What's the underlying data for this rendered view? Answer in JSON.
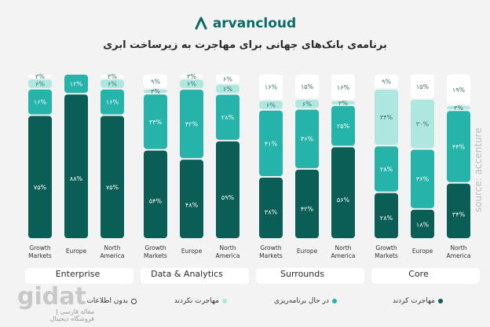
{
  "brand": {
    "name": "arvancloud",
    "color": "#0d6b67"
  },
  "title": "برنامه‌ی بانک‌های جهانی برای مهاجرت به زیرساخت ابری",
  "source": "source: accenture",
  "watermark": {
    "main": "gidat",
    "sub": "مقاله فارسی | فروشگاه دیجیتال"
  },
  "colors": {
    "migrated": "#0a5e55",
    "planning": "#26b3a9",
    "not_migrating": "#aee6e0",
    "unknown": "#ffffff"
  },
  "legend": [
    {
      "label": "مهاجرت کردند",
      "color": "#0a5e55",
      "icon": "dot"
    },
    {
      "label": "در حال برنامه‌ریزی",
      "color": "#26b3a9",
      "icon": "dot"
    },
    {
      "label": "مهاجرت نکردند",
      "color": "#aee6e0",
      "icon": "dot"
    },
    {
      "label": "بدون اطلاعات",
      "color": "#ffffff",
      "icon": "dot"
    }
  ],
  "chart_data": {
    "type": "bar",
    "stacked": true,
    "unit": "%",
    "groups": [
      {
        "name": "Enterprise",
        "categories": [
          "Growth Markets",
          "Europe",
          "North America"
        ],
        "labels": [
          [
            "۷۵%",
            "۱۶%",
            "۶%",
            "۳%"
          ],
          [
            "۸۸%",
            "۱۲%",
            "",
            ""
          ],
          [
            "۷۵%",
            "۱۶%",
            "۶%",
            "۳%"
          ]
        ],
        "values": [
          [
            75,
            16,
            6,
            3
          ],
          [
            88,
            12,
            0,
            0
          ],
          [
            75,
            16,
            6,
            3
          ]
        ]
      },
      {
        "name": "Data & Analytics",
        "categories": [
          "Growth Markets",
          "Europe",
          "North America"
        ],
        "labels": [
          [
            "۵۴%",
            "۳۴%",
            "۳%",
            "۹%"
          ],
          [
            "۴۸%",
            "۴۲%",
            "۶%",
            "۳%"
          ],
          [
            "۵۹%",
            "۲۸%",
            "۶%",
            "۶%"
          ]
        ],
        "values": [
          [
            54,
            34,
            3,
            9
          ],
          [
            48,
            42,
            6,
            3
          ],
          [
            59,
            28,
            6,
            6
          ]
        ]
      },
      {
        "name": "Surrounds",
        "categories": [
          "Growth Markets",
          "Europe",
          "North America"
        ],
        "labels": [
          [
            "۳۸%",
            "۴۱%",
            "۶%",
            "۱۶%"
          ],
          [
            "۴۲%",
            "۳۶%",
            "۶%",
            "۱۵%"
          ],
          [
            "۵۶%",
            "۲۵%",
            "۳%",
            "۱۶%"
          ]
        ],
        "values": [
          [
            38,
            41,
            6,
            16
          ],
          [
            42,
            36,
            6,
            15
          ],
          [
            56,
            25,
            3,
            16
          ]
        ]
      },
      {
        "name": "Core",
        "categories": [
          "Growth Markets",
          "Europe",
          "North America"
        ],
        "labels": [
          [
            "۲۸%",
            "۲۸%",
            "۳۴%",
            "۹%"
          ],
          [
            "۱۸%",
            "۳۶%",
            "۳۰%",
            "۱۵%"
          ],
          [
            "۳۴%",
            "۴۴%",
            "۳%",
            "۱۹%"
          ]
        ],
        "values": [
          [
            28,
            28,
            34,
            9
          ],
          [
            18,
            36,
            30,
            15
          ],
          [
            34,
            44,
            3,
            19
          ]
        ]
      }
    ],
    "series": [
      {
        "name": "مهاجرت کردند"
      },
      {
        "name": "در حال برنامه‌ریزی"
      },
      {
        "name": "مهاجرت نکردند"
      },
      {
        "name": "بدون اطلاعات"
      }
    ],
    "legend_position": "bottom",
    "grid": false
  }
}
